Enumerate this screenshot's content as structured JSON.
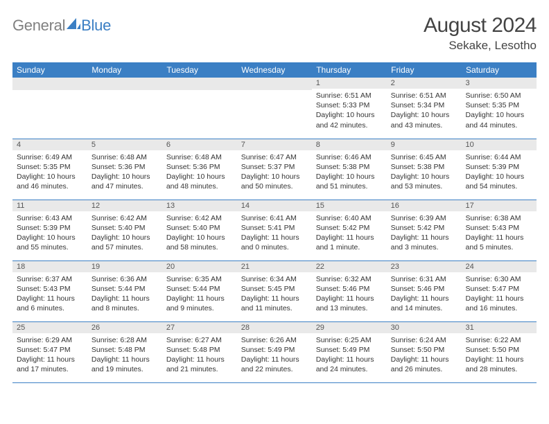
{
  "logo": {
    "text_general": "General",
    "text_blue": "Blue",
    "general_color": "#808080",
    "blue_color": "#3b7fc4"
  },
  "title": "August 2024",
  "location": "Sekake, Lesotho",
  "colors": {
    "header_bg": "#3b7fc4",
    "header_text": "#ffffff",
    "daynum_bg": "#e9e9e9",
    "daynum_text": "#555555",
    "body_text": "#333333",
    "border": "#3b7fc4",
    "title_text": "#444444"
  },
  "day_headers": [
    "Sunday",
    "Monday",
    "Tuesday",
    "Wednesday",
    "Thursday",
    "Friday",
    "Saturday"
  ],
  "weeks": [
    [
      null,
      null,
      null,
      null,
      {
        "num": "1",
        "sunrise": "6:51 AM",
        "sunset": "5:33 PM",
        "daylight": "10 hours and 42 minutes."
      },
      {
        "num": "2",
        "sunrise": "6:51 AM",
        "sunset": "5:34 PM",
        "daylight": "10 hours and 43 minutes."
      },
      {
        "num": "3",
        "sunrise": "6:50 AM",
        "sunset": "5:35 PM",
        "daylight": "10 hours and 44 minutes."
      }
    ],
    [
      {
        "num": "4",
        "sunrise": "6:49 AM",
        "sunset": "5:35 PM",
        "daylight": "10 hours and 46 minutes."
      },
      {
        "num": "5",
        "sunrise": "6:48 AM",
        "sunset": "5:36 PM",
        "daylight": "10 hours and 47 minutes."
      },
      {
        "num": "6",
        "sunrise": "6:48 AM",
        "sunset": "5:36 PM",
        "daylight": "10 hours and 48 minutes."
      },
      {
        "num": "7",
        "sunrise": "6:47 AM",
        "sunset": "5:37 PM",
        "daylight": "10 hours and 50 minutes."
      },
      {
        "num": "8",
        "sunrise": "6:46 AM",
        "sunset": "5:38 PM",
        "daylight": "10 hours and 51 minutes."
      },
      {
        "num": "9",
        "sunrise": "6:45 AM",
        "sunset": "5:38 PM",
        "daylight": "10 hours and 53 minutes."
      },
      {
        "num": "10",
        "sunrise": "6:44 AM",
        "sunset": "5:39 PM",
        "daylight": "10 hours and 54 minutes."
      }
    ],
    [
      {
        "num": "11",
        "sunrise": "6:43 AM",
        "sunset": "5:39 PM",
        "daylight": "10 hours and 55 minutes."
      },
      {
        "num": "12",
        "sunrise": "6:42 AM",
        "sunset": "5:40 PM",
        "daylight": "10 hours and 57 minutes."
      },
      {
        "num": "13",
        "sunrise": "6:42 AM",
        "sunset": "5:40 PM",
        "daylight": "10 hours and 58 minutes."
      },
      {
        "num": "14",
        "sunrise": "6:41 AM",
        "sunset": "5:41 PM",
        "daylight": "11 hours and 0 minutes."
      },
      {
        "num": "15",
        "sunrise": "6:40 AM",
        "sunset": "5:42 PM",
        "daylight": "11 hours and 1 minute."
      },
      {
        "num": "16",
        "sunrise": "6:39 AM",
        "sunset": "5:42 PM",
        "daylight": "11 hours and 3 minutes."
      },
      {
        "num": "17",
        "sunrise": "6:38 AM",
        "sunset": "5:43 PM",
        "daylight": "11 hours and 5 minutes."
      }
    ],
    [
      {
        "num": "18",
        "sunrise": "6:37 AM",
        "sunset": "5:43 PM",
        "daylight": "11 hours and 6 minutes."
      },
      {
        "num": "19",
        "sunrise": "6:36 AM",
        "sunset": "5:44 PM",
        "daylight": "11 hours and 8 minutes."
      },
      {
        "num": "20",
        "sunrise": "6:35 AM",
        "sunset": "5:44 PM",
        "daylight": "11 hours and 9 minutes."
      },
      {
        "num": "21",
        "sunrise": "6:34 AM",
        "sunset": "5:45 PM",
        "daylight": "11 hours and 11 minutes."
      },
      {
        "num": "22",
        "sunrise": "6:32 AM",
        "sunset": "5:46 PM",
        "daylight": "11 hours and 13 minutes."
      },
      {
        "num": "23",
        "sunrise": "6:31 AM",
        "sunset": "5:46 PM",
        "daylight": "11 hours and 14 minutes."
      },
      {
        "num": "24",
        "sunrise": "6:30 AM",
        "sunset": "5:47 PM",
        "daylight": "11 hours and 16 minutes."
      }
    ],
    [
      {
        "num": "25",
        "sunrise": "6:29 AM",
        "sunset": "5:47 PM",
        "daylight": "11 hours and 17 minutes."
      },
      {
        "num": "26",
        "sunrise": "6:28 AM",
        "sunset": "5:48 PM",
        "daylight": "11 hours and 19 minutes."
      },
      {
        "num": "27",
        "sunrise": "6:27 AM",
        "sunset": "5:48 PM",
        "daylight": "11 hours and 21 minutes."
      },
      {
        "num": "28",
        "sunrise": "6:26 AM",
        "sunset": "5:49 PM",
        "daylight": "11 hours and 22 minutes."
      },
      {
        "num": "29",
        "sunrise": "6:25 AM",
        "sunset": "5:49 PM",
        "daylight": "11 hours and 24 minutes."
      },
      {
        "num": "30",
        "sunrise": "6:24 AM",
        "sunset": "5:50 PM",
        "daylight": "11 hours and 26 minutes."
      },
      {
        "num": "31",
        "sunrise": "6:22 AM",
        "sunset": "5:50 PM",
        "daylight": "11 hours and 28 minutes."
      }
    ]
  ],
  "labels": {
    "sunrise": "Sunrise:",
    "sunset": "Sunset:",
    "daylight": "Daylight:"
  }
}
